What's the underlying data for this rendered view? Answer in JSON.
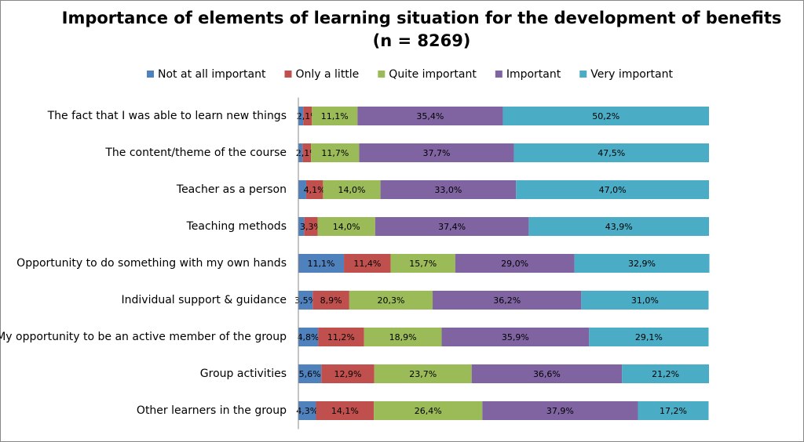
{
  "chart_data": {
    "type": "stacked-bar-horizontal",
    "title": "Importance of elements of learning situation for the development of benefits",
    "subtitle": "(n = 8269)",
    "categories": [
      "The fact that I was able to learn new things",
      "The content/theme of the course",
      "Teacher as a person",
      "Teaching methods",
      "Opportunity to do something with my own hands",
      "Individual support & guidance",
      "My opportunity to be an active member of the group",
      "Group activities",
      "Other learners in the group"
    ],
    "xlim": [
      0,
      100
    ],
    "series": [
      {
        "name": "Not at all important",
        "color": "#4f81bd",
        "values": [
          1.2,
          1.0,
          1.9,
          1.4,
          11.1,
          3.5,
          4.8,
          5.6,
          4.3
        ],
        "value_labels": [
          null,
          null,
          null,
          null,
          "11,1%",
          "3,5%",
          "4,8%",
          "5,6%",
          "4,3%"
        ]
      },
      {
        "name": "Only a little",
        "color": "#c0504d",
        "values": [
          2.1,
          2.1,
          4.1,
          3.3,
          11.4,
          8.9,
          11.2,
          12.9,
          14.1
        ],
        "value_labels": [
          "2,1%",
          "2,1%",
          "4,1%",
          "3,3%",
          "11,4%",
          "8,9%",
          "11,2%",
          "12,9%",
          "14,1%"
        ]
      },
      {
        "name": "Quite important",
        "color": "#9bbb59",
        "values": [
          11.1,
          11.7,
          14.0,
          14.0,
          15.7,
          20.3,
          18.9,
          23.7,
          26.4
        ],
        "value_labels": [
          "11,1%",
          "11,7%",
          "14,0%",
          "14,0%",
          "15,7%",
          "20,3%",
          "18,9%",
          "23,7%",
          "26,4%"
        ]
      },
      {
        "name": "Important",
        "color": "#8064a2",
        "values": [
          35.4,
          37.7,
          33.0,
          37.4,
          29.0,
          36.2,
          35.9,
          36.6,
          37.9
        ],
        "value_labels": [
          "35,4%",
          "37,7%",
          "33,0%",
          "37,4%",
          "29,0%",
          "36,2%",
          "35,9%",
          "36,6%",
          "37,9%"
        ]
      },
      {
        "name": "Very important",
        "color": "#4bacc6",
        "values": [
          50.2,
          47.5,
          47.0,
          43.9,
          32.9,
          31.0,
          29.1,
          21.2,
          17.2
        ],
        "value_labels": [
          "50,2%",
          "47,5%",
          "47,0%",
          "43,9%",
          "32,9%",
          "31,0%",
          "29,1%",
          "21,2%",
          "17,2%"
        ]
      }
    ]
  }
}
